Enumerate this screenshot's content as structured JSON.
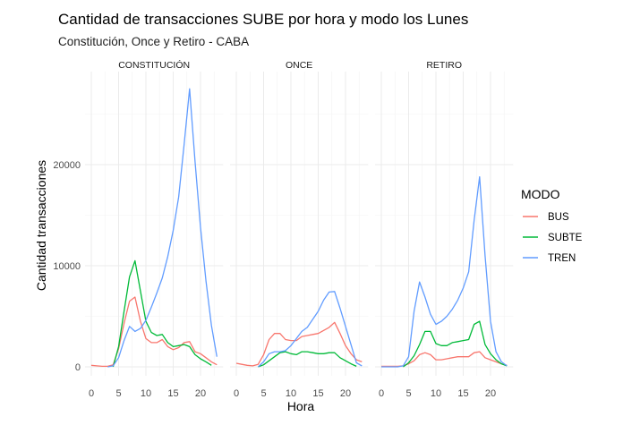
{
  "chart_data": {
    "type": "line",
    "title": "Cantidad de transacciones SUBE por hora y modo los Lunes",
    "subtitle": "Constitución, Once y Retiro - CABA",
    "xlabel": "Hora",
    "ylabel": "Cantidad transacciones",
    "x_ticks": [
      0,
      5,
      10,
      15,
      20
    ],
    "x_tick_labels": [
      "0",
      "5",
      "10",
      "15",
      "20"
    ],
    "y_ticks": [
      0,
      10000,
      20000
    ],
    "y_tick_labels": [
      "0",
      "10000",
      "20000"
    ],
    "xlim": [
      -1.15,
      24.15
    ],
    "ylim": [
      -1500,
      29000
    ],
    "grid": true,
    "legend": {
      "title": "MODO",
      "position": "right",
      "entries": [
        "BUS",
        "SUBTE",
        "TREN"
      ]
    },
    "colors": {
      "BUS": "#F8766D",
      "SUBTE": "#00BA38",
      "TREN": "#619CFF"
    },
    "facets": [
      {
        "label": "CONSTITUCIÓN",
        "series": [
          {
            "name": "BUS",
            "x": [
              0,
              1,
              2,
              3,
              4,
              5,
              6,
              7,
              8,
              9,
              10,
              11,
              12,
              13,
              14,
              15,
              16,
              17,
              18,
              19,
              20,
              21,
              22,
              23
            ],
            "values": [
              150,
              100,
              50,
              50,
              200,
              1800,
              4300,
              6500,
              6900,
              4500,
              2800,
              2400,
              2400,
              2700,
              2000,
              1700,
              1900,
              2400,
              2500,
              1500,
              1300,
              900,
              500,
              200
            ]
          },
          {
            "name": "SUBTE",
            "x": [
              4,
              5,
              6,
              7,
              8,
              9,
              10,
              11,
              12,
              13,
              14,
              15,
              16,
              17,
              18,
              19,
              20,
              21,
              22
            ],
            "values": [
              0,
              2000,
              5500,
              8900,
              10500,
              7500,
              4500,
              3400,
              3100,
              3200,
              2400,
              2000,
              2100,
              2200,
              2000,
              1200,
              800,
              500,
              150
            ]
          },
          {
            "name": "TREN",
            "x": [
              3,
              4,
              5,
              6,
              7,
              8,
              9,
              10,
              11,
              12,
              13,
              14,
              15,
              16,
              17,
              18,
              19,
              20,
              21,
              22,
              23
            ],
            "values": [
              0,
              100,
              900,
              2600,
              4000,
              3500,
              3800,
              4600,
              5900,
              7300,
              8800,
              10900,
              13500,
              16800,
              22000,
              27500,
              20300,
              13800,
              8500,
              4100,
              1000
            ]
          }
        ]
      },
      {
        "label": "ONCE",
        "series": [
          {
            "name": "BUS",
            "x": [
              0,
              1,
              2,
              3,
              4,
              5,
              6,
              7,
              8,
              9,
              10,
              11,
              12,
              13,
              14,
              15,
              16,
              17,
              18,
              19,
              20,
              21,
              22,
              23
            ],
            "values": [
              350,
              250,
              150,
              100,
              250,
              1200,
              2700,
              3300,
              3300,
              2700,
              2600,
              2600,
              3000,
              3100,
              3200,
              3300,
              3600,
              3900,
              4400,
              3300,
              2100,
              1300,
              700,
              500
            ]
          },
          {
            "name": "SUBTE",
            "x": [
              4,
              5,
              6,
              7,
              8,
              9,
              10,
              11,
              12,
              13,
              14,
              15,
              16,
              17,
              18,
              19,
              20,
              21,
              22
            ],
            "values": [
              0,
              200,
              600,
              1000,
              1400,
              1500,
              1300,
              1200,
              1500,
              1500,
              1400,
              1300,
              1300,
              1400,
              1400,
              900,
              600,
              300,
              50
            ]
          },
          {
            "name": "TREN",
            "x": [
              4,
              5,
              6,
              7,
              8,
              9,
              10,
              11,
              12,
              13,
              14,
              15,
              16,
              17,
              18,
              19,
              20,
              21,
              22,
              23
            ],
            "values": [
              0,
              500,
              1300,
              1500,
              1500,
              1600,
              2100,
              2800,
              3500,
              3900,
              4700,
              5500,
              6600,
              7400,
              7450,
              5800,
              4000,
              2200,
              400,
              100
            ]
          }
        ]
      },
      {
        "label": "RETIRO",
        "series": [
          {
            "name": "BUS",
            "x": [
              0,
              1,
              2,
              3,
              4,
              5,
              6,
              7,
              8,
              9,
              10,
              11,
              12,
              13,
              14,
              15,
              16,
              17,
              18,
              19,
              20,
              21,
              22,
              23
            ],
            "values": [
              50,
              50,
              50,
              50,
              100,
              300,
              600,
              1200,
              1400,
              1200,
              700,
              700,
              800,
              900,
              1000,
              1000,
              1000,
              1400,
              1500,
              900,
              700,
              500,
              300,
              150
            ]
          },
          {
            "name": "SUBTE",
            "x": [
              4,
              5,
              6,
              7,
              8,
              9,
              10,
              11,
              12,
              13,
              14,
              15,
              16,
              17,
              18,
              19,
              20,
              21,
              22,
              23
            ],
            "values": [
              0,
              400,
              1100,
              2200,
              3500,
              3500,
              2300,
              2100,
              2100,
              2400,
              2500,
              2600,
              2700,
              4200,
              4500,
              2200,
              1300,
              700,
              300,
              100
            ]
          },
          {
            "name": "TREN",
            "x": [
              0,
              1,
              2,
              3,
              4,
              5,
              6,
              7,
              8,
              9,
              10,
              11,
              12,
              13,
              14,
              15,
              16,
              17,
              18,
              19,
              20,
              21,
              22,
              23
            ],
            "values": [
              0,
              0,
              0,
              0,
              100,
              1000,
              5500,
              8400,
              6900,
              5200,
              4200,
              4500,
              5000,
              5700,
              6600,
              7800,
              9400,
              14500,
              18800,
              11000,
              4500,
              1500,
              500,
              100
            ]
          }
        ]
      }
    ]
  }
}
